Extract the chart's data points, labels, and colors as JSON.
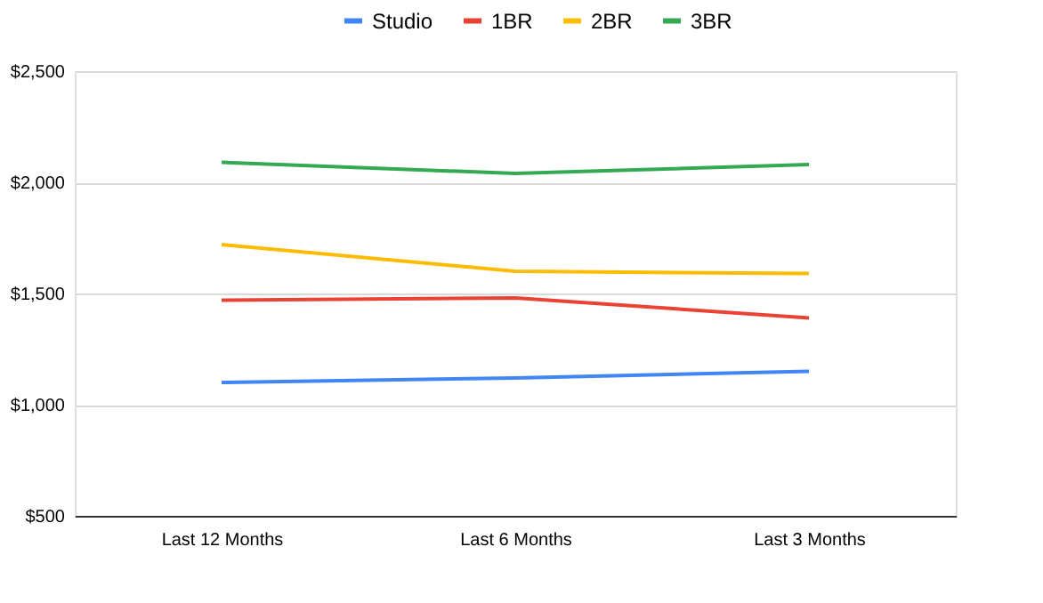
{
  "chart_data": {
    "type": "line",
    "categories": [
      "Last 12 Months",
      "Last 6 Months",
      "Last 3 Months"
    ],
    "series": [
      {
        "name": "Studio",
        "color": "#4285f4",
        "values": [
          1100,
          1120,
          1150
        ]
      },
      {
        "name": "1BR",
        "color": "#ea4335",
        "values": [
          1470,
          1480,
          1390
        ]
      },
      {
        "name": "2BR",
        "color": "#fbbc04",
        "values": [
          1720,
          1600,
          1590
        ]
      },
      {
        "name": "3BR",
        "color": "#34a853",
        "values": [
          2090,
          2040,
          2080
        ]
      }
    ],
    "ylim": [
      500,
      2500
    ],
    "yticks": [
      {
        "value": 500,
        "label": "$500"
      },
      {
        "value": 1000,
        "label": "$1,000"
      },
      {
        "value": 1500,
        "label": "$1,500"
      },
      {
        "value": 2000,
        "label": "$2,000"
      },
      {
        "value": 2500,
        "label": "$2,500"
      }
    ],
    "grid": "y",
    "legend": "top",
    "marker": "none",
    "line_style": "solid"
  }
}
